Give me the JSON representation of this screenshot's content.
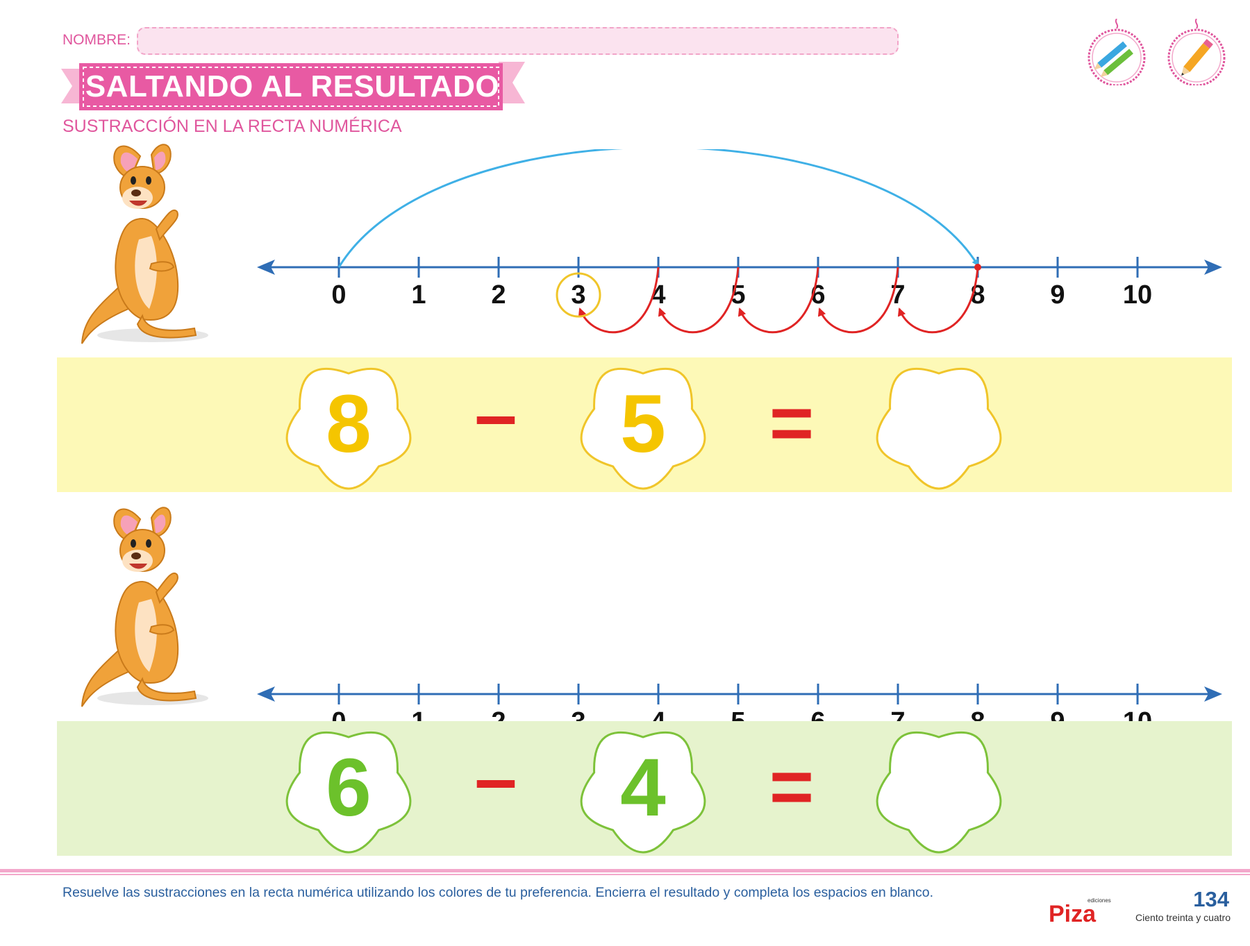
{
  "header": {
    "name_label": "NOMBRE:",
    "title": "SALTANDO AL RESULTADO",
    "subtitle": "SUSTRACCIÓN EN LA RECTA NUMÉRICA",
    "badges": [
      "colored-pencils-icon",
      "pencil-icon"
    ]
  },
  "number_line": {
    "labels": [
      "0",
      "1",
      "2",
      "3",
      "4",
      "5",
      "6",
      "7",
      "8",
      "9",
      "10"
    ]
  },
  "example": {
    "forward_jump": {
      "from": 0,
      "to": 8
    },
    "back_hops": [
      [
        8,
        7
      ],
      [
        7,
        6
      ],
      [
        6,
        5
      ],
      [
        5,
        4
      ],
      [
        4,
        3
      ]
    ],
    "circled": 3
  },
  "exercises": [
    {
      "a": "8",
      "op": "–",
      "b": "5",
      "eq": "=",
      "answer": "",
      "accent": "#f5c500",
      "band": "#fdf9b7",
      "outline": "#f0c52a"
    },
    {
      "a": "6",
      "op": "–",
      "b": "4",
      "eq": "=",
      "answer": "",
      "accent": "#6cc12b",
      "band": "#e6f3cd",
      "outline": "#7dc23a"
    }
  ],
  "colors": {
    "pink": "#e0569d",
    "blue_line": "#2f6db5",
    "arc_blue": "#3fb0e6",
    "arc_red": "#e02424",
    "minus_red": "#e02424"
  },
  "footer": {
    "instructions": "Resuelve las sustracciones en la recta numérica utilizando los colores de tu preferencia. Encierra el resultado y completa los espacios en blanco.",
    "publisher": "Piza",
    "publisher_small": "ediciones",
    "page_number": "134",
    "page_words": "Ciento treinta y cuatro"
  }
}
